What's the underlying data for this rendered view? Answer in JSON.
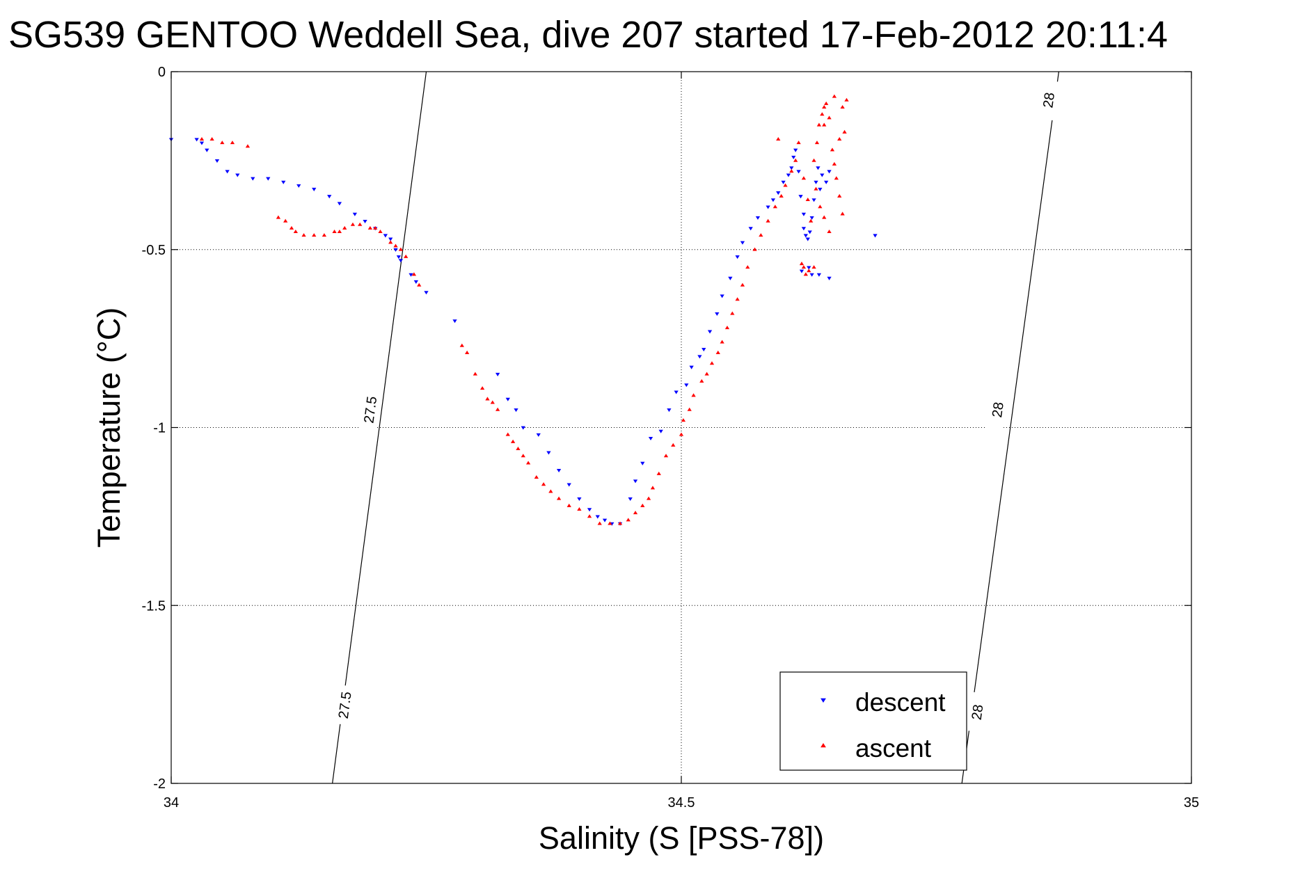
{
  "chart_data": {
    "type": "scatter",
    "title": "SG539 GENTOO Weddell Sea, dive 207 started 17-Feb-2012 20:11:4",
    "xlabel": "Salinity (S [PSS-78])",
    "ylabel": "Temperature (°C)",
    "xlim": [
      34,
      35
    ],
    "ylim": [
      -2,
      0
    ],
    "xticks": [
      34,
      34.5,
      35
    ],
    "xtick_labels": [
      "34",
      "34.5",
      "35"
    ],
    "yticks": [
      0,
      -0.5,
      -1,
      -1.5,
      -2
    ],
    "ytick_labels": [
      "0",
      "-0.5",
      "-1",
      "-1.5",
      "-2"
    ],
    "grid": true,
    "legend_position": "bottom-right",
    "series": [
      {
        "name": "descent",
        "marker": "triangle-down",
        "color": "#0000ff",
        "points": [
          [
            34.0,
            -0.19
          ],
          [
            34.025,
            -0.19
          ],
          [
            34.03,
            -0.2
          ],
          [
            34.035,
            -0.22
          ],
          [
            34.045,
            -0.25
          ],
          [
            34.055,
            -0.28
          ],
          [
            34.065,
            -0.29
          ],
          [
            34.08,
            -0.3
          ],
          [
            34.095,
            -0.3
          ],
          [
            34.11,
            -0.31
          ],
          [
            34.125,
            -0.32
          ],
          [
            34.14,
            -0.33
          ],
          [
            34.155,
            -0.35
          ],
          [
            34.165,
            -0.37
          ],
          [
            34.18,
            -0.4
          ],
          [
            34.19,
            -0.42
          ],
          [
            34.2,
            -0.44
          ],
          [
            34.21,
            -0.46
          ],
          [
            34.215,
            -0.47
          ],
          [
            34.22,
            -0.5
          ],
          [
            34.223,
            -0.52
          ],
          [
            34.225,
            -0.53
          ],
          [
            34.235,
            -0.57
          ],
          [
            34.24,
            -0.59
          ],
          [
            34.25,
            -0.62
          ],
          [
            34.278,
            -0.7
          ],
          [
            34.32,
            -0.85
          ],
          [
            34.33,
            -0.92
          ],
          [
            34.338,
            -0.95
          ],
          [
            34.345,
            -1.0
          ],
          [
            34.36,
            -1.02
          ],
          [
            34.37,
            -1.07
          ],
          [
            34.38,
            -1.12
          ],
          [
            34.39,
            -1.16
          ],
          [
            34.4,
            -1.2
          ],
          [
            34.41,
            -1.23
          ],
          [
            34.418,
            -1.25
          ],
          [
            34.425,
            -1.26
          ],
          [
            34.432,
            -1.27
          ],
          [
            34.44,
            -1.27
          ],
          [
            34.45,
            -1.2
          ],
          [
            34.455,
            -1.15
          ],
          [
            34.462,
            -1.1
          ],
          [
            34.47,
            -1.03
          ],
          [
            34.48,
            -1.01
          ],
          [
            34.488,
            -0.95
          ],
          [
            34.495,
            -0.9
          ],
          [
            34.505,
            -0.88
          ],
          [
            34.51,
            -0.83
          ],
          [
            34.518,
            -0.8
          ],
          [
            34.522,
            -0.78
          ],
          [
            34.528,
            -0.73
          ],
          [
            34.535,
            -0.68
          ],
          [
            34.54,
            -0.63
          ],
          [
            34.548,
            -0.58
          ],
          [
            34.555,
            -0.52
          ],
          [
            34.56,
            -0.48
          ],
          [
            34.568,
            -0.44
          ],
          [
            34.575,
            -0.41
          ],
          [
            34.585,
            -0.38
          ],
          [
            34.59,
            -0.36
          ],
          [
            34.595,
            -0.34
          ],
          [
            34.6,
            -0.31
          ],
          [
            34.605,
            -0.29
          ],
          [
            34.608,
            -0.27
          ],
          [
            34.61,
            -0.24
          ],
          [
            34.612,
            -0.22
          ],
          [
            34.615,
            -0.28
          ],
          [
            34.617,
            -0.35
          ],
          [
            34.62,
            -0.4
          ],
          [
            34.62,
            -0.44
          ],
          [
            34.622,
            -0.46
          ],
          [
            34.624,
            -0.47
          ],
          [
            34.626,
            -0.45
          ],
          [
            34.628,
            -0.41
          ],
          [
            34.63,
            -0.36
          ],
          [
            34.632,
            -0.31
          ],
          [
            34.634,
            -0.27
          ],
          [
            34.636,
            -0.33
          ],
          [
            34.638,
            -0.29
          ],
          [
            34.642,
            -0.31
          ],
          [
            34.645,
            -0.28
          ],
          [
            34.625,
            -0.55
          ],
          [
            34.628,
            -0.57
          ],
          [
            34.635,
            -0.57
          ],
          [
            34.645,
            -0.58
          ],
          [
            34.618,
            -0.56
          ],
          [
            34.69,
            -0.46
          ]
        ]
      },
      {
        "name": "ascent",
        "marker": "triangle-up",
        "color": "#ff0000",
        "points": [
          [
            34.03,
            -0.19
          ],
          [
            34.04,
            -0.19
          ],
          [
            34.05,
            -0.2
          ],
          [
            34.06,
            -0.2
          ],
          [
            34.075,
            -0.21
          ],
          [
            34.105,
            -0.41
          ],
          [
            34.112,
            -0.42
          ],
          [
            34.118,
            -0.44
          ],
          [
            34.122,
            -0.45
          ],
          [
            34.13,
            -0.46
          ],
          [
            34.14,
            -0.46
          ],
          [
            34.15,
            -0.46
          ],
          [
            34.16,
            -0.45
          ],
          [
            34.165,
            -0.45
          ],
          [
            34.17,
            -0.44
          ],
          [
            34.178,
            -0.43
          ],
          [
            34.185,
            -0.43
          ],
          [
            34.195,
            -0.44
          ],
          [
            34.2,
            -0.44
          ],
          [
            34.205,
            -0.45
          ],
          [
            34.215,
            -0.48
          ],
          [
            34.22,
            -0.49
          ],
          [
            34.225,
            -0.5
          ],
          [
            34.23,
            -0.52
          ],
          [
            34.238,
            -0.57
          ],
          [
            34.243,
            -0.6
          ],
          [
            34.285,
            -0.77
          ],
          [
            34.29,
            -0.79
          ],
          [
            34.298,
            -0.85
          ],
          [
            34.305,
            -0.89
          ],
          [
            34.31,
            -0.92
          ],
          [
            34.315,
            -0.93
          ],
          [
            34.32,
            -0.95
          ],
          [
            34.33,
            -1.02
          ],
          [
            34.335,
            -1.04
          ],
          [
            34.34,
            -1.06
          ],
          [
            34.345,
            -1.08
          ],
          [
            34.35,
            -1.1
          ],
          [
            34.358,
            -1.14
          ],
          [
            34.365,
            -1.16
          ],
          [
            34.372,
            -1.18
          ],
          [
            34.38,
            -1.2
          ],
          [
            34.39,
            -1.22
          ],
          [
            34.4,
            -1.23
          ],
          [
            34.41,
            -1.25
          ],
          [
            34.42,
            -1.27
          ],
          [
            34.43,
            -1.27
          ],
          [
            34.44,
            -1.27
          ],
          [
            34.448,
            -1.26
          ],
          [
            34.455,
            -1.24
          ],
          [
            34.462,
            -1.22
          ],
          [
            34.468,
            -1.2
          ],
          [
            34.472,
            -1.17
          ],
          [
            34.478,
            -1.13
          ],
          [
            34.485,
            -1.08
          ],
          [
            34.492,
            -1.05
          ],
          [
            34.5,
            -1.02
          ],
          [
            34.502,
            -0.98
          ],
          [
            34.508,
            -0.95
          ],
          [
            34.512,
            -0.91
          ],
          [
            34.52,
            -0.87
          ],
          [
            34.525,
            -0.85
          ],
          [
            34.53,
            -0.82
          ],
          [
            34.536,
            -0.79
          ],
          [
            34.54,
            -0.76
          ],
          [
            34.545,
            -0.72
          ],
          [
            34.55,
            -0.68
          ],
          [
            34.555,
            -0.64
          ],
          [
            34.56,
            -0.6
          ],
          [
            34.565,
            -0.55
          ],
          [
            34.572,
            -0.5
          ],
          [
            34.578,
            -0.46
          ],
          [
            34.585,
            -0.42
          ],
          [
            34.592,
            -0.38
          ],
          [
            34.598,
            -0.35
          ],
          [
            34.602,
            -0.32
          ],
          [
            34.608,
            -0.28
          ],
          [
            34.612,
            -0.25
          ],
          [
            34.615,
            -0.2
          ],
          [
            34.62,
            -0.3
          ],
          [
            34.624,
            -0.36
          ],
          [
            34.627,
            -0.42
          ],
          [
            34.63,
            -0.25
          ],
          [
            34.633,
            -0.2
          ],
          [
            34.635,
            -0.15
          ],
          [
            34.638,
            -0.12
          ],
          [
            34.64,
            -0.1
          ],
          [
            34.642,
            -0.09
          ],
          [
            34.645,
            -0.13
          ],
          [
            34.648,
            -0.22
          ],
          [
            34.65,
            -0.26
          ],
          [
            34.652,
            -0.3
          ],
          [
            34.655,
            -0.35
          ],
          [
            34.658,
            -0.4
          ],
          [
            34.645,
            -0.45
          ],
          [
            34.64,
            -0.41
          ],
          [
            34.636,
            -0.38
          ],
          [
            34.632,
            -0.33
          ],
          [
            34.62,
            -0.55
          ],
          [
            34.625,
            -0.56
          ],
          [
            34.63,
            -0.55
          ],
          [
            34.618,
            -0.54
          ],
          [
            34.622,
            -0.57
          ],
          [
            34.66,
            -0.17
          ],
          [
            34.655,
            -0.19
          ],
          [
            34.658,
            -0.1
          ],
          [
            34.662,
            -0.08
          ],
          [
            34.65,
            -0.07
          ],
          [
            34.64,
            -0.15
          ],
          [
            34.595,
            -0.19
          ]
        ]
      }
    ],
    "contours": [
      {
        "label": "27.5",
        "points": [
          [
            34.158,
            -2.0
          ],
          [
            34.25,
            0.0
          ]
        ],
        "label_positions": [
          [
            34.17,
            -1.78
          ],
          [
            34.195,
            -0.95
          ]
        ]
      },
      {
        "label": "28",
        "points": [
          [
            34.775,
            -2.0
          ],
          [
            34.87,
            0.0
          ]
        ],
        "label_positions": [
          [
            34.79,
            -1.8
          ],
          [
            34.81,
            -0.95
          ],
          [
            34.86,
            -0.08
          ]
        ]
      }
    ]
  }
}
